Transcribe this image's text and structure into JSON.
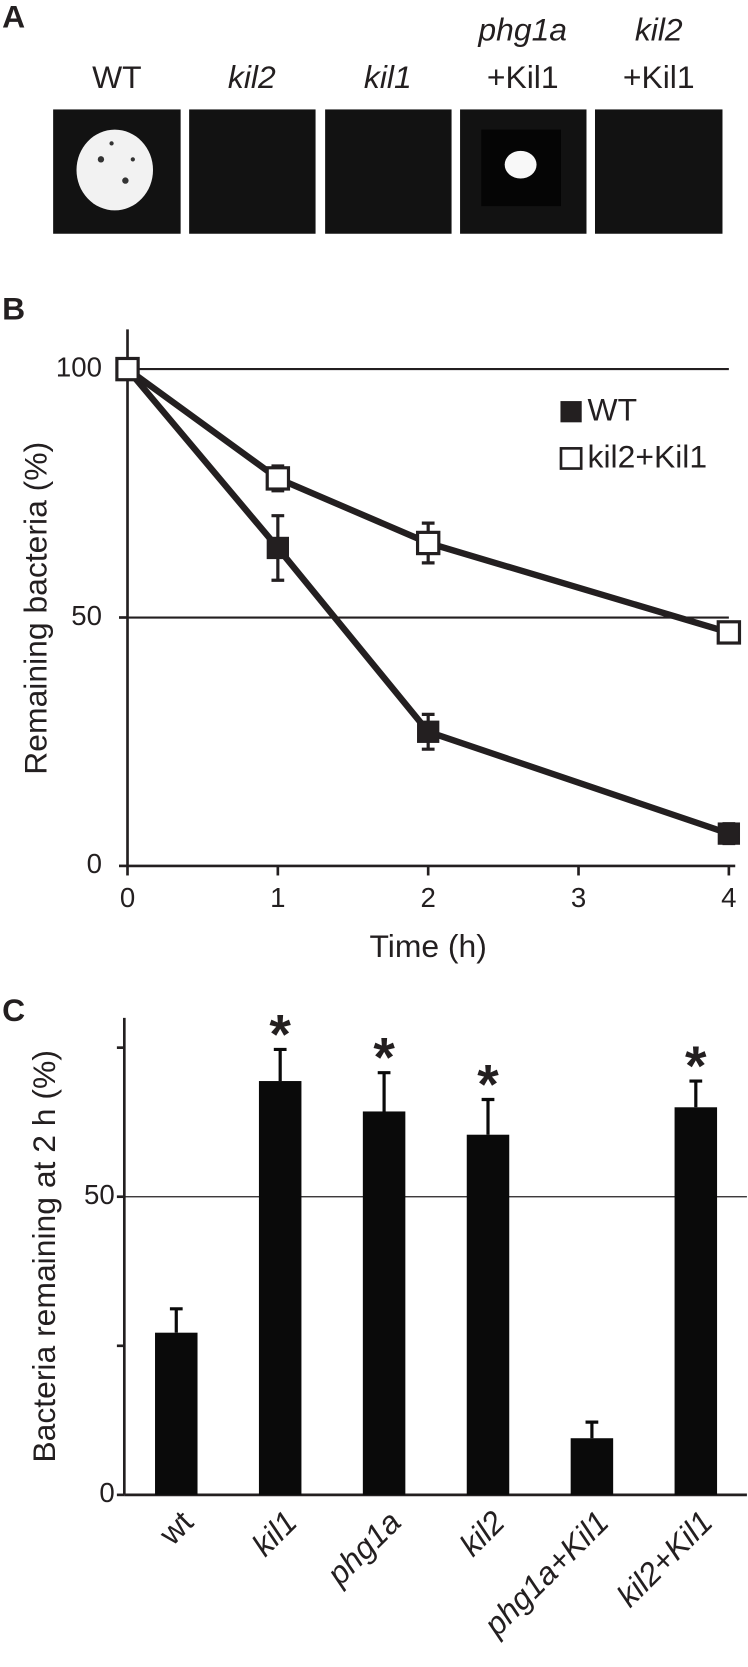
{
  "panel_a": {
    "label": "A",
    "columns": [
      {
        "lines": [
          "WT"
        ]
      },
      {
        "lines": [
          "kil2"
        ]
      },
      {
        "lines": [
          "kil1"
        ]
      },
      {
        "lines": [
          "phg1a",
          "+Kil1"
        ]
      },
      {
        "lines": [
          "kil2",
          "+Kil1"
        ]
      }
    ]
  },
  "chart_data": [
    {
      "type": "line",
      "label": "B",
      "xlabel": "Time (h)",
      "ylabel": "Remaining bacteria (%)",
      "x": [
        0,
        1,
        2,
        4
      ],
      "xlim": [
        0,
        4
      ],
      "xticks": [
        0,
        1,
        2,
        3,
        4
      ],
      "ylim": [
        0,
        108
      ],
      "yticks": [
        0,
        50,
        100
      ],
      "grid": true,
      "legend": "upper right",
      "series": [
        {
          "name": "WT",
          "color": "#231f20",
          "marker": "filled-square",
          "values": [
            100,
            64,
            27,
            6.5
          ],
          "errors": [
            0,
            6.5,
            3.5,
            2
          ]
        },
        {
          "name": "kil2+Kil1",
          "color": "#231f20",
          "marker": "open-square",
          "values": [
            100,
            78,
            65,
            47
          ],
          "errors": [
            0,
            2.5,
            4,
            2
          ]
        }
      ]
    },
    {
      "type": "bar",
      "label": "C",
      "ylabel": "Bacteria remaining at 2 h (%)",
      "categories": [
        "wt",
        "kil1",
        "phg1a",
        "kil2",
        "phg1a+Kil1",
        "kil2+Kil1"
      ],
      "values": [
        27.2,
        69.4,
        64.3,
        60.4,
        9.5,
        65
      ],
      "errors": [
        4,
        5.3,
        6.5,
        5.9,
        2.7,
        4.4
      ],
      "color": "#0a0a0a",
      "ylim": [
        0,
        80
      ],
      "yticks": [
        0,
        50
      ],
      "minor_yticks": [
        25,
        75
      ],
      "grid": true,
      "significance_marker": "*",
      "significant": [
        false,
        true,
        true,
        true,
        false,
        true
      ]
    }
  ]
}
